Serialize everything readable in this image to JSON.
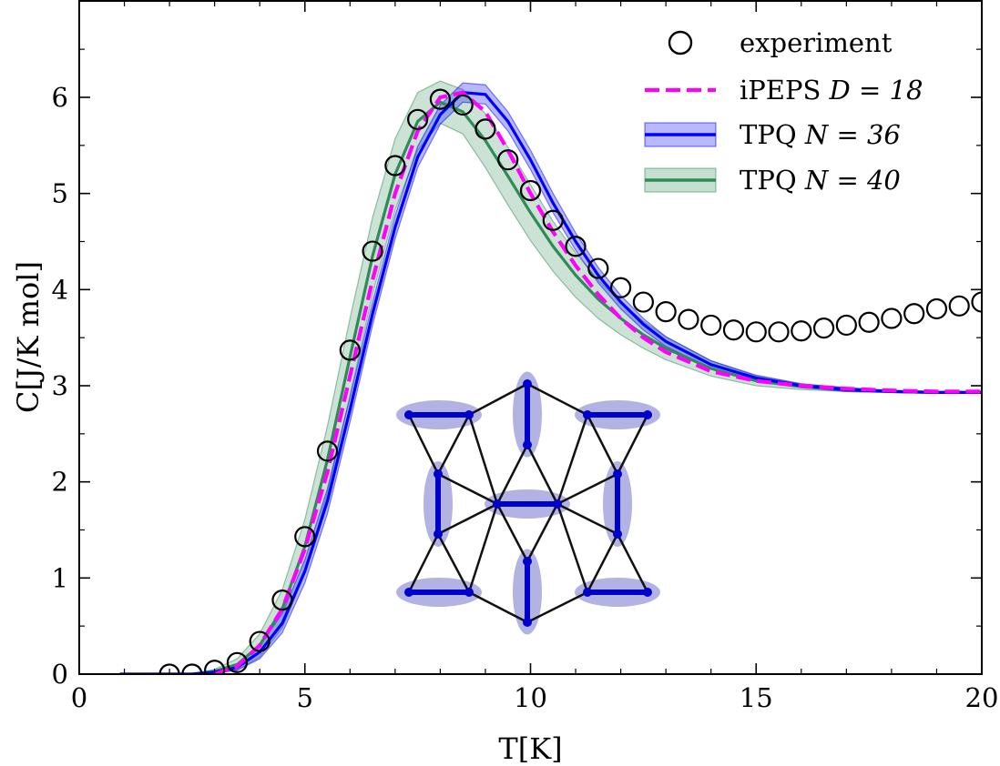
{
  "chart_data": {
    "type": "line",
    "xlabel": "T[K]",
    "ylabel": "C[J/K mol]",
    "xlim": [
      0,
      20
    ],
    "ylim": [
      0,
      7
    ],
    "xticks": [
      "0",
      "5",
      "10",
      "15",
      "20"
    ],
    "yticks": [
      "0",
      "1",
      "2",
      "3",
      "4",
      "5",
      "6"
    ],
    "grid": false,
    "legend_position": "top-right",
    "colors": {
      "experiment": "#000000",
      "ipeps": "#ff00ff",
      "tpq36": "#0000ff",
      "tpq40": "#2e8b57"
    },
    "series": [
      {
        "name": "experiment",
        "style": "open-circles",
        "x": [
          2.0,
          2.5,
          3.0,
          3.5,
          4.0,
          4.5,
          5.0,
          5.5,
          6.0,
          6.5,
          7.0,
          7.5,
          8.0,
          8.5,
          9.0,
          9.5,
          10.0,
          10.5,
          11.0,
          11.5,
          12.0,
          12.5,
          13.0,
          13.5,
          14.0,
          14.5,
          15.0,
          15.5,
          16.0,
          16.5,
          17.0,
          17.5,
          18.0,
          18.5,
          19.0,
          19.5,
          20.0
        ],
        "y": [
          0.0,
          0.0,
          0.04,
          0.12,
          0.34,
          0.77,
          1.43,
          2.32,
          3.37,
          4.4,
          5.29,
          5.77,
          5.98,
          5.92,
          5.67,
          5.35,
          5.03,
          4.72,
          4.45,
          4.22,
          4.02,
          3.87,
          3.77,
          3.69,
          3.63,
          3.58,
          3.56,
          3.56,
          3.57,
          3.6,
          3.63,
          3.66,
          3.7,
          3.75,
          3.8,
          3.83,
          3.87
        ]
      },
      {
        "name": "iPEPS D = 18",
        "style": "dashed",
        "x": [
          3.0,
          3.5,
          4.0,
          4.5,
          5.0,
          5.5,
          6.0,
          6.5,
          7.0,
          7.5,
          8.0,
          8.5,
          9.0,
          9.5,
          10.0,
          10.5,
          11.0,
          11.5,
          12.0,
          12.5,
          13.0,
          14.0,
          15.0,
          16.0,
          17.0,
          18.0,
          19.0,
          20.0
        ],
        "y": [
          0.0,
          0.08,
          0.3,
          0.68,
          1.3,
          2.1,
          3.1,
          4.1,
          5.0,
          5.65,
          6.0,
          6.05,
          5.85,
          5.45,
          5.0,
          4.6,
          4.25,
          3.95,
          3.7,
          3.5,
          3.35,
          3.15,
          3.05,
          3.0,
          2.97,
          2.95,
          2.94,
          2.94
        ]
      },
      {
        "name": "TPQ N = 36",
        "style": "solid-band",
        "x": [
          0.9,
          2.5,
          3.0,
          3.5,
          4.0,
          4.5,
          5.0,
          5.5,
          6.0,
          6.5,
          7.0,
          7.5,
          8.0,
          8.5,
          9.0,
          9.5,
          10.0,
          10.5,
          11.0,
          11.5,
          12.0,
          12.5,
          13.0,
          14.0,
          15.0,
          16.0,
          17.0,
          18.0,
          19.0,
          20.0
        ],
        "y": [
          0.0,
          0.0,
          0.02,
          0.07,
          0.23,
          0.53,
          1.07,
          1.8,
          2.75,
          3.75,
          4.65,
          5.38,
          5.82,
          6.05,
          6.03,
          5.75,
          5.35,
          4.9,
          4.5,
          4.15,
          3.87,
          3.64,
          3.46,
          3.22,
          3.08,
          3.0,
          2.96,
          2.94,
          2.93,
          2.93
        ],
        "band": [
          0.0,
          0.0,
          0.01,
          0.03,
          0.07,
          0.1,
          0.12,
          0.13,
          0.13,
          0.12,
          0.12,
          0.11,
          0.1,
          0.1,
          0.1,
          0.1,
          0.1,
          0.1,
          0.09,
          0.08,
          0.07,
          0.06,
          0.05,
          0.04,
          0.03,
          0.02,
          0.02,
          0.01,
          0.01,
          0.01
        ]
      },
      {
        "name": "TPQ N = 40",
        "style": "solid-band",
        "x": [
          0.9,
          2.5,
          3.0,
          3.5,
          4.0,
          4.5,
          5.0,
          5.5,
          6.0,
          6.5,
          7.0,
          7.5,
          8.0,
          8.5,
          9.0,
          9.5,
          10.0,
          10.5,
          11.0,
          11.5,
          12.0,
          12.5,
          13.0,
          14.0,
          15.0,
          16.0,
          17.0,
          18.0,
          19.0,
          20.0
        ],
        "y": [
          0.0,
          0.0,
          0.03,
          0.1,
          0.3,
          0.68,
          1.33,
          2.23,
          3.3,
          4.35,
          5.2,
          5.75,
          5.95,
          5.85,
          5.55,
          5.18,
          4.8,
          4.45,
          4.15,
          3.9,
          3.7,
          3.53,
          3.39,
          3.18,
          3.05,
          2.99,
          2.96,
          2.94,
          2.93,
          2.93
        ],
        "band": [
          0.0,
          0.0,
          0.02,
          0.06,
          0.12,
          0.2,
          0.28,
          0.35,
          0.4,
          0.4,
          0.37,
          0.3,
          0.22,
          0.23,
          0.28,
          0.3,
          0.29,
          0.26,
          0.23,
          0.2,
          0.17,
          0.14,
          0.12,
          0.08,
          0.05,
          0.03,
          0.02,
          0.01,
          0.01,
          0.01
        ]
      }
    ],
    "legend": [
      {
        "marker": "circle",
        "label": "experiment"
      },
      {
        "marker": "dashed",
        "label": "iPEPS",
        "math": "D = 18"
      },
      {
        "marker": "band-blue",
        "label": "TPQ",
        "math": "N = 36"
      },
      {
        "marker": "band-green",
        "label": "TPQ",
        "math": "N = 40"
      }
    ],
    "inset": {
      "description_hidden": true,
      "bond_color": "#0000cc",
      "ellipse_color": "#7f7fd0"
    }
  }
}
